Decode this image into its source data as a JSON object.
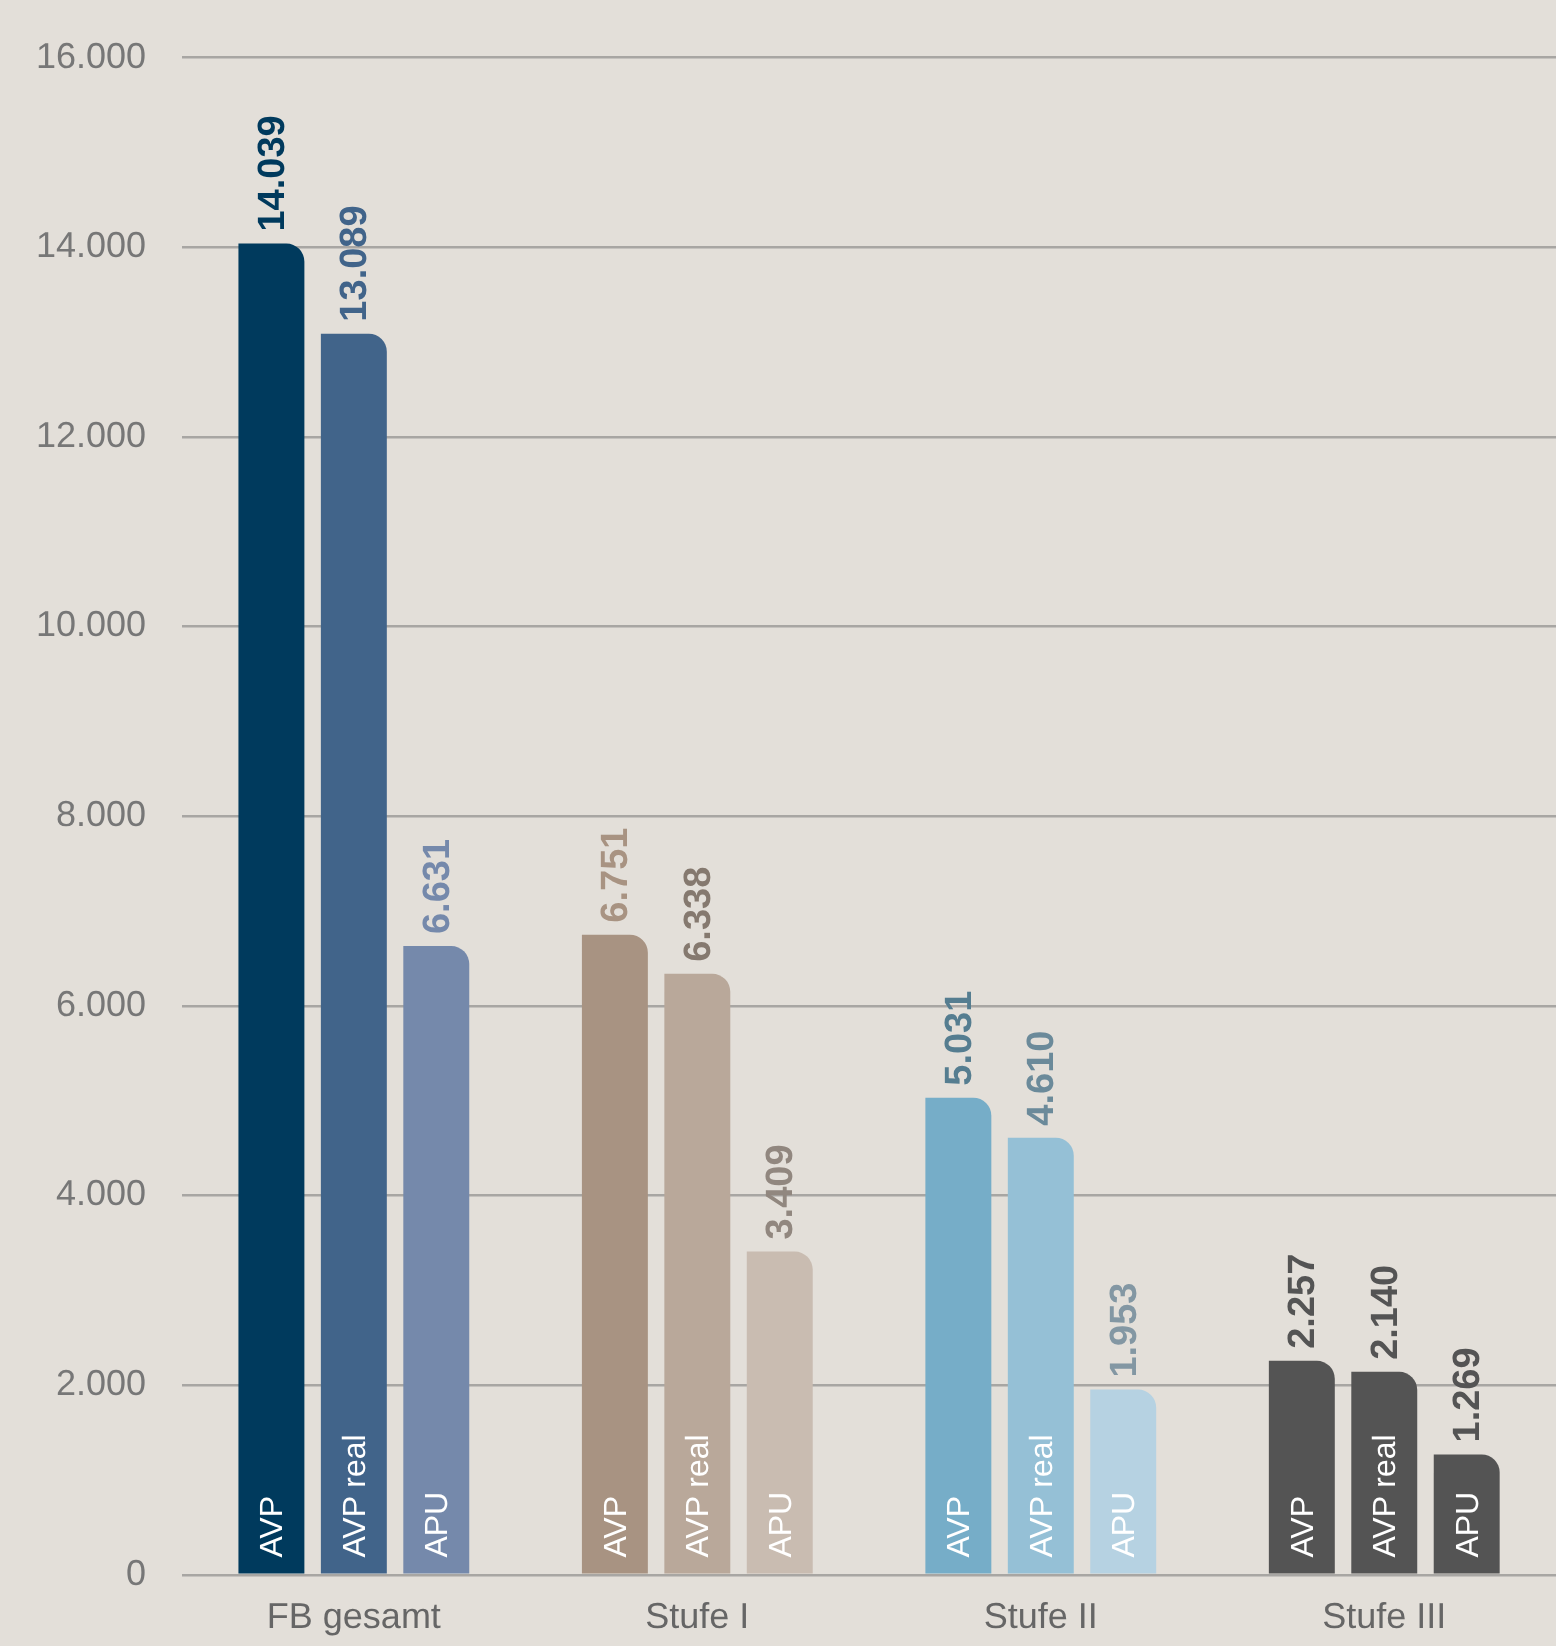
{
  "chart_data": {
    "type": "bar",
    "categories": [
      "FB gesamt",
      "Stufe I",
      "Stufe II",
      "Stufe III"
    ],
    "series": [
      {
        "name": "AVP",
        "colors": [
          "#003a5d",
          "#a89382",
          "#76adc8",
          "#545454"
        ],
        "values": [
          14039,
          6751,
          5031,
          2257
        ],
        "value_labels": [
          "14.039",
          "6.751",
          "5.031",
          "2.257"
        ]
      },
      {
        "name": "AVP real",
        "colors": [
          "#41648a",
          "#b9a89a",
          "#95c0d6",
          "#545454"
        ],
        "values": [
          13089,
          6338,
          4610,
          2140
        ],
        "value_labels": [
          "13.089",
          "6.338",
          "4.610",
          "2.140"
        ]
      },
      {
        "name": "APU",
        "colors": [
          "#7589ab",
          "#c9bcb1",
          "#b6d2e2",
          "#545454"
        ],
        "values": [
          6631,
          3409,
          1953,
          1269
        ],
        "value_labels": [
          "6.631",
          "3.409",
          "1.953",
          "1.269"
        ]
      }
    ],
    "ylim": [
      0,
      16000
    ],
    "yticks": [
      0,
      {
        "value": 2000,
        "label": "2.000"
      },
      {
        "value": 4000,
        "label": "4.000"
      },
      {
        "value": 6000,
        "label": "6.000"
      },
      {
        "value": 8000,
        "label": "8.000"
      },
      {
        "value": 10000,
        "label": "10.000"
      },
      {
        "value": 12000,
        "label": "12.000"
      },
      {
        "value": 14000,
        "label": "14.000"
      },
      {
        "value": 16000,
        "label": "16.000"
      }
    ],
    "grid": "y",
    "legend": false
  }
}
